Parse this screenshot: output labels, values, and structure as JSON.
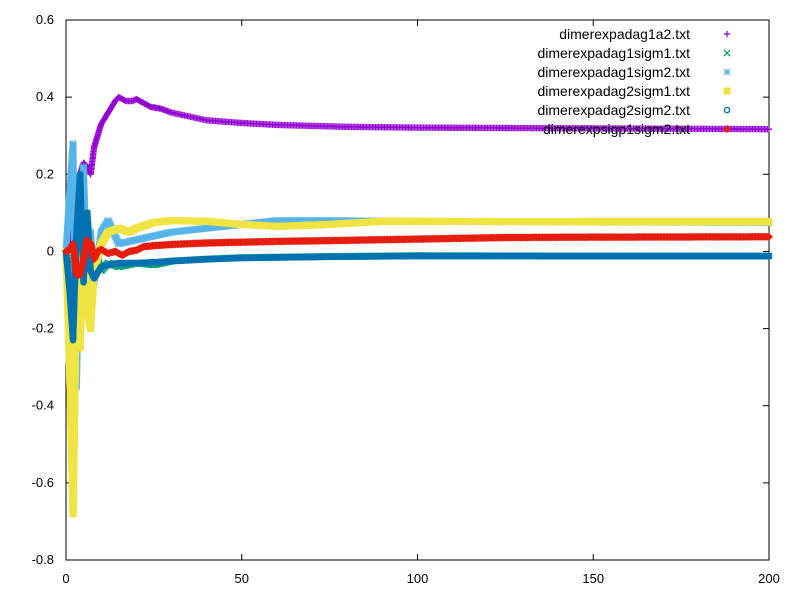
{
  "chart_data": {
    "type": "scatter",
    "title": "",
    "xlabel": "",
    "ylabel": "",
    "xlim": [
      0,
      200
    ],
    "ylim": [
      -0.8,
      0.6
    ],
    "grid": false,
    "legend_position": "top-right",
    "x_ticks": [
      "0",
      "50",
      "100",
      "150",
      "200"
    ],
    "y_ticks": [
      "0.6",
      "0.4",
      "0.2",
      "0",
      "-0.2",
      "-0.4",
      "-0.6",
      "-0.8"
    ],
    "series": [
      {
        "name": "dimerexpadag1a2.txt",
        "marker": "plus",
        "color": "#9400d3",
        "points": [
          [
            0,
            0
          ],
          [
            1,
            0.01
          ],
          [
            2,
            0.1
          ],
          [
            3,
            0.05
          ],
          [
            4,
            0.2
          ],
          [
            5,
            0.23
          ],
          [
            6,
            0.22
          ],
          [
            7,
            0.2
          ],
          [
            8,
            0.27
          ],
          [
            9,
            0.3
          ],
          [
            10,
            0.33
          ],
          [
            12,
            0.36
          ],
          [
            14,
            0.39
          ],
          [
            15,
            0.4
          ],
          [
            17,
            0.39
          ],
          [
            19,
            0.39
          ],
          [
            20,
            0.395
          ],
          [
            22,
            0.385
          ],
          [
            24,
            0.375
          ],
          [
            27,
            0.37
          ],
          [
            30,
            0.36
          ],
          [
            35,
            0.35
          ],
          [
            40,
            0.34
          ],
          [
            50,
            0.333
          ],
          [
            60,
            0.328
          ],
          [
            80,
            0.323
          ],
          [
            100,
            0.321
          ],
          [
            150,
            0.319
          ],
          [
            200,
            0.317
          ]
        ]
      },
      {
        "name": "dimerexpadag1sigm1.txt",
        "marker": "cross",
        "color": "#009e73",
        "points": [
          [
            0,
            0
          ],
          [
            1,
            -0.05
          ],
          [
            2,
            -0.2
          ],
          [
            3,
            0.05
          ],
          [
            4,
            0.18
          ],
          [
            5,
            -0.05
          ],
          [
            6,
            0.1
          ],
          [
            7,
            -0.03
          ],
          [
            8,
            -0.06
          ],
          [
            9,
            -0.02
          ],
          [
            10,
            -0.05
          ],
          [
            12,
            -0.03
          ],
          [
            15,
            -0.04
          ],
          [
            20,
            -0.03
          ],
          [
            25,
            -0.035
          ],
          [
            30,
            -0.025
          ],
          [
            40,
            -0.02
          ],
          [
            50,
            -0.016
          ],
          [
            75,
            -0.013
          ],
          [
            100,
            -0.011
          ],
          [
            150,
            -0.012
          ],
          [
            200,
            -0.012
          ]
        ]
      },
      {
        "name": "dimerexpadag1sigm2.txt",
        "marker": "star",
        "color": "#56b4e9",
        "points": [
          [
            0,
            0
          ],
          [
            1,
            0.15
          ],
          [
            2,
            0.28
          ],
          [
            3,
            -0.35
          ],
          [
            4,
            0.1
          ],
          [
            5,
            0.22
          ],
          [
            6,
            -0.1
          ],
          [
            7,
            0.05
          ],
          [
            8,
            -0.08
          ],
          [
            10,
            0.05
          ],
          [
            12,
            0.08
          ],
          [
            15,
            0.02
          ],
          [
            20,
            0.03
          ],
          [
            30,
            0.05
          ],
          [
            50,
            0.07
          ],
          [
            60,
            0.08
          ],
          [
            75,
            0.08
          ],
          [
            100,
            0.078
          ],
          [
            130,
            0.077
          ],
          [
            150,
            0.076
          ],
          [
            200,
            0.075
          ]
        ]
      },
      {
        "name": "dimerexpadag2sigm1.txt",
        "marker": "square",
        "color": "#f0e442",
        "points": [
          [
            0,
            0
          ],
          [
            1,
            -0.3
          ],
          [
            2,
            -0.68
          ],
          [
            3,
            -0.1
          ],
          [
            4,
            -0.25
          ],
          [
            5,
            0.05
          ],
          [
            6,
            -0.15
          ],
          [
            7,
            -0.2
          ],
          [
            8,
            -0.05
          ],
          [
            10,
            0.02
          ],
          [
            12,
            0.05
          ],
          [
            15,
            0.06
          ],
          [
            18,
            0.05
          ],
          [
            20,
            0.06
          ],
          [
            25,
            0.075
          ],
          [
            30,
            0.08
          ],
          [
            40,
            0.078
          ],
          [
            50,
            0.07
          ],
          [
            60,
            0.065
          ],
          [
            75,
            0.07
          ],
          [
            90,
            0.078
          ],
          [
            100,
            0.078
          ],
          [
            150,
            0.077
          ],
          [
            200,
            0.077
          ]
        ]
      },
      {
        "name": "dimerexpadag2sigm2.txt",
        "marker": "circle",
        "color": "#0072b2",
        "points": [
          [
            0,
            0
          ],
          [
            1,
            -0.1
          ],
          [
            2,
            -0.23
          ],
          [
            3,
            0.05
          ],
          [
            4,
            0.2
          ],
          [
            5,
            -0.08
          ],
          [
            6,
            0.1
          ],
          [
            7,
            -0.05
          ],
          [
            8,
            -0.07
          ],
          [
            10,
            -0.04
          ],
          [
            12,
            -0.035
          ],
          [
            15,
            -0.03
          ],
          [
            20,
            -0.03
          ],
          [
            25,
            -0.028
          ],
          [
            30,
            -0.025
          ],
          [
            40,
            -0.02
          ],
          [
            50,
            -0.017
          ],
          [
            75,
            -0.014
          ],
          [
            100,
            -0.012
          ],
          [
            150,
            -0.012
          ],
          [
            200,
            -0.012
          ]
        ]
      },
      {
        "name": "dimerexpsigp1sigm2.txt",
        "marker": "diamond",
        "color": "#e51e10",
        "points": [
          [
            0,
            0
          ],
          [
            1,
            0.005
          ],
          [
            2,
            0.02
          ],
          [
            3,
            -0.06
          ],
          [
            4,
            -0.06
          ],
          [
            5,
            -0.02
          ],
          [
            6,
            0.03
          ],
          [
            7,
            0.02
          ],
          [
            8,
            -0.02
          ],
          [
            9,
            0.0
          ],
          [
            10,
            0.005
          ],
          [
            12,
            -0.005
          ],
          [
            14,
            0.0
          ],
          [
            16,
            -0.01
          ],
          [
            18,
            0.0
          ],
          [
            20,
            0.003
          ],
          [
            22,
            0.012
          ],
          [
            25,
            0.015
          ],
          [
            30,
            0.018
          ],
          [
            40,
            0.022
          ],
          [
            50,
            0.024
          ],
          [
            60,
            0.026
          ],
          [
            75,
            0.028
          ],
          [
            100,
            0.032
          ],
          [
            125,
            0.036
          ],
          [
            150,
            0.037
          ],
          [
            200,
            0.038
          ]
        ]
      }
    ]
  }
}
